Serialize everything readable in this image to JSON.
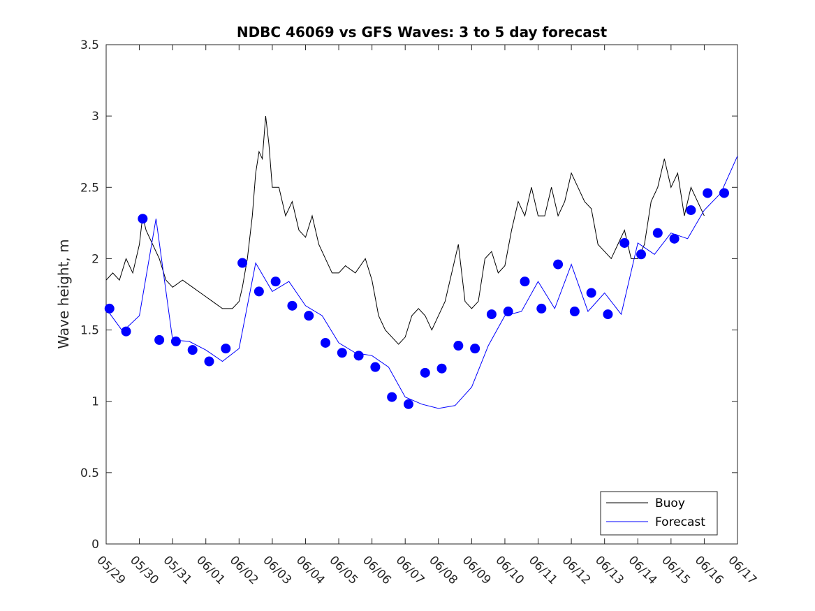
{
  "chart_data": {
    "type": "line",
    "title": "NDBC 46069 vs GFS Waves: 3 to 5 day forecast",
    "xlabel": "",
    "ylabel": "Wave height, m",
    "ylim": [
      0,
      3.5
    ],
    "yticks": [
      "0",
      "0.5",
      "1",
      "1.5",
      "2",
      "2.5",
      "3",
      "3.5"
    ],
    "xticks": [
      "05/29",
      "05/30",
      "05/31",
      "06/01",
      "06/02",
      "06/03",
      "06/04",
      "06/05",
      "06/06",
      "06/07",
      "06/08",
      "06/09",
      "06/10",
      "06/11",
      "06/12",
      "06/13",
      "06/14",
      "06/15",
      "06/16",
      "06/17"
    ],
    "grid": false,
    "legend": {
      "position": "bottom-right",
      "entries": [
        "Buoy",
        "Forecast"
      ]
    },
    "colors": {
      "buoy": "#000000",
      "forecast": "#0000ff"
    },
    "series": [
      {
        "name": "Buoy",
        "style": "line",
        "x_days": [
          0,
          0.2,
          0.4,
          0.6,
          0.8,
          1.0,
          1.1,
          1.2,
          1.4,
          1.6,
          1.8,
          2.0,
          2.3,
          2.6,
          2.9,
          3.2,
          3.5,
          3.8,
          4.0,
          4.1,
          4.25,
          4.4,
          4.5,
          4.6,
          4.7,
          4.8,
          4.9,
          5.0,
          5.2,
          5.4,
          5.6,
          5.8,
          6.0,
          6.2,
          6.4,
          6.6,
          6.8,
          7.0,
          7.2,
          7.5,
          7.8,
          8.0,
          8.2,
          8.4,
          8.6,
          8.8,
          9.0,
          9.2,
          9.4,
          9.6,
          9.8,
          10.0,
          10.2,
          10.4,
          10.6,
          10.8,
          11.0,
          11.2,
          11.4,
          11.6,
          11.8,
          12.0,
          12.2,
          12.4,
          12.6,
          12.8,
          13.0,
          13.2,
          13.4,
          13.6,
          13.8,
          14.0,
          14.2,
          14.4,
          14.6,
          14.8,
          15.0,
          15.2,
          15.4,
          15.6,
          15.8,
          16.0,
          16.2,
          16.4,
          16.6,
          16.8,
          17.0,
          17.2,
          17.4,
          17.6,
          17.8,
          18.0,
          18.2,
          18.4
        ],
        "values": [
          1.85,
          1.9,
          1.85,
          2.0,
          1.9,
          2.1,
          2.3,
          2.2,
          2.1,
          2.0,
          1.85,
          1.8,
          1.85,
          1.8,
          1.75,
          1.7,
          1.65,
          1.65,
          1.7,
          1.8,
          2.0,
          2.3,
          2.6,
          2.75,
          2.7,
          3.0,
          2.8,
          2.5,
          2.5,
          2.3,
          2.4,
          2.2,
          2.15,
          2.3,
          2.1,
          2.0,
          1.9,
          1.9,
          1.95,
          1.9,
          2.0,
          1.85,
          1.6,
          1.5,
          1.45,
          1.4,
          1.45,
          1.6,
          1.65,
          1.6,
          1.5,
          1.6,
          1.7,
          1.9,
          2.1,
          1.7,
          1.65,
          1.7,
          2.0,
          2.05,
          1.9,
          1.95,
          2.2,
          2.4,
          2.3,
          2.5,
          2.3,
          2.3,
          2.5,
          2.3,
          2.4,
          2.6,
          2.5,
          2.4,
          2.35,
          2.1,
          2.05,
          2.0,
          2.1,
          2.2,
          2.0,
          2.0,
          2.1,
          2.4,
          2.5,
          2.7,
          2.5,
          2.6,
          2.3,
          2.5,
          2.4,
          2.3,
          null,
          null
        ]
      },
      {
        "name": "Forecast",
        "style": "line",
        "x_days": [
          0,
          0.5,
          1.0,
          1.5,
          2.0,
          2.5,
          3.0,
          3.5,
          4.0,
          4.5,
          5.0,
          5.5,
          6.0,
          6.5,
          7.0,
          7.5,
          8.0,
          8.5,
          9.0,
          9.5,
          10.0,
          10.5,
          11.0,
          11.5,
          12.0,
          12.5,
          13.0,
          13.5,
          14.0,
          14.5,
          15.0,
          15.5,
          16.0,
          16.5,
          17.0,
          17.5,
          18.0,
          18.5,
          19.0
        ],
        "values": [
          1.65,
          1.49,
          1.6,
          2.28,
          1.43,
          1.42,
          1.36,
          1.28,
          1.37,
          1.97,
          1.77,
          1.84,
          1.67,
          1.6,
          1.41,
          1.34,
          1.32,
          1.24,
          1.03,
          0.98,
          0.95,
          0.97,
          1.1,
          1.39,
          1.6,
          1.63,
          1.84,
          1.65,
          1.96,
          1.63,
          1.76,
          1.61,
          2.11,
          2.03,
          2.18,
          2.14,
          2.34,
          2.46,
          2.72
        ]
      },
      {
        "name": "",
        "style": "markers",
        "x_days": [
          0.1,
          0.6,
          1.1,
          1.6,
          2.1,
          2.6,
          3.1,
          3.6,
          4.1,
          4.6,
          5.1,
          5.6,
          6.1,
          6.6,
          7.1,
          7.6,
          8.1,
          8.6,
          9.1,
          9.6,
          10.1,
          10.6,
          11.1,
          11.6,
          12.1,
          12.6,
          13.1,
          13.6,
          14.1,
          14.6,
          15.1,
          15.6,
          16.1,
          16.6,
          17.1,
          17.6,
          18.1,
          18.6
        ],
        "values": [
          1.65,
          1.49,
          2.28,
          1.43,
          1.42,
          1.36,
          1.28,
          1.37,
          1.97,
          1.77,
          1.84,
          1.67,
          1.6,
          1.41,
          1.34,
          1.32,
          1.24,
          1.03,
          0.98,
          1.2,
          1.23,
          1.39,
          1.37,
          1.61,
          1.63,
          1.84,
          1.65,
          1.96,
          1.63,
          1.76,
          1.61,
          2.11,
          2.03,
          2.18,
          2.14,
          2.34,
          2.46,
          2.46
        ]
      }
    ]
  }
}
